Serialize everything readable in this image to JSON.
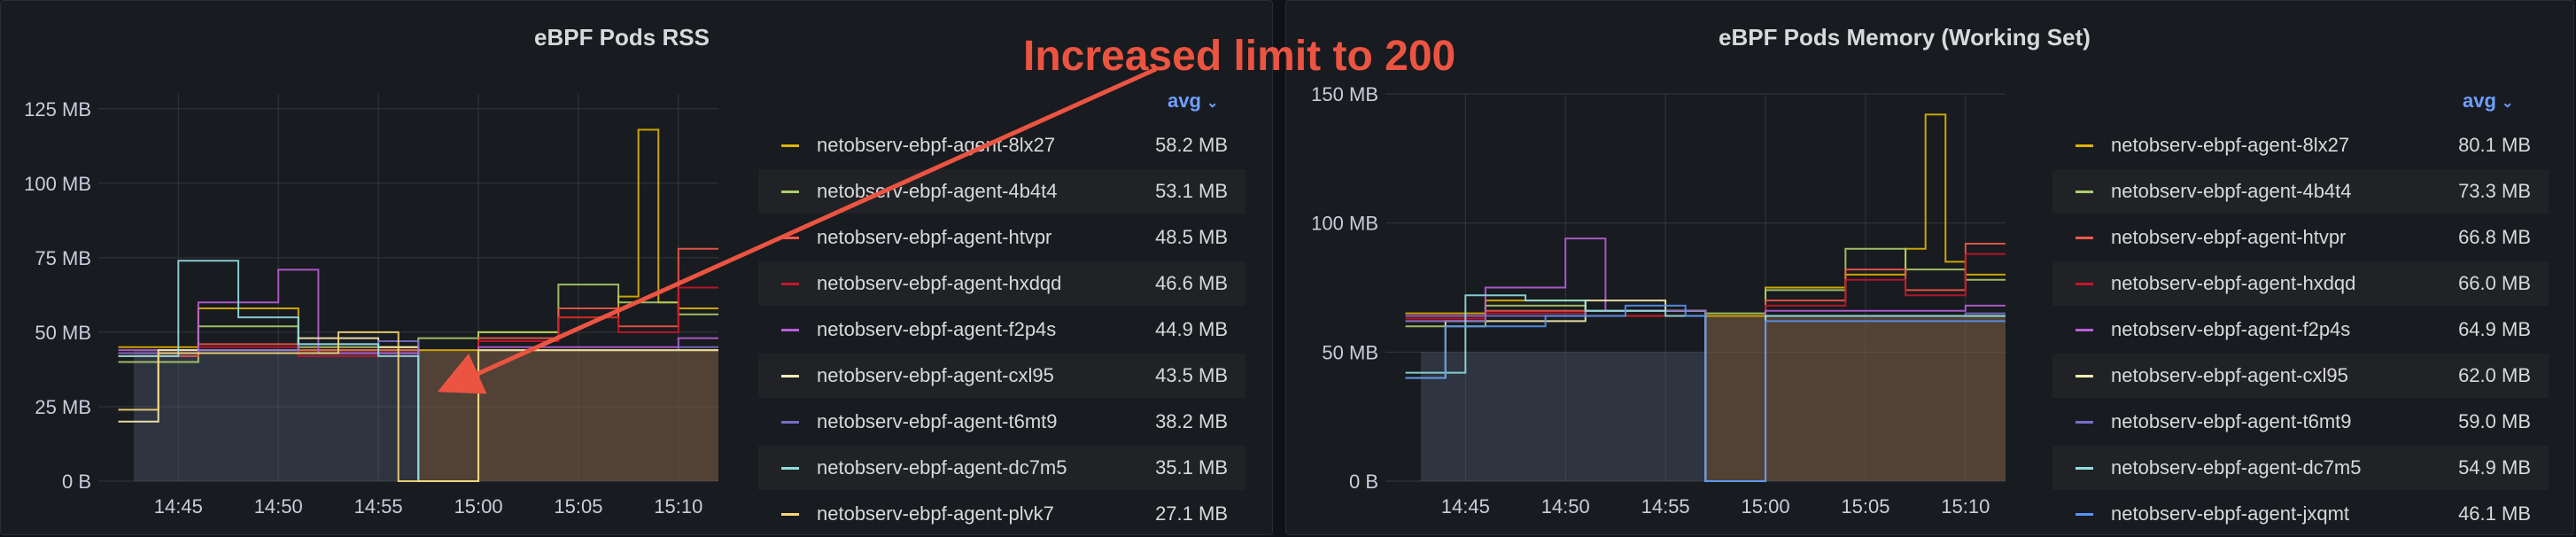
{
  "annotation": {
    "text": "Increased limit to 200",
    "color": "#ec5442"
  },
  "colors": {
    "background": "#111217",
    "panel": "#181b1f",
    "grid": "#34373d",
    "text": "#ccccdc",
    "legend_link": "#6e9fff",
    "before_area": "#5d6581",
    "after_area": "#7a5b44"
  },
  "panels": [
    {
      "title": "eBPF Pods RSS",
      "legend_aggregate": "avg",
      "legend": [
        {
          "name": "netobserv-ebpf-agent-8lx27",
          "value": "58.2 MB",
          "color": "#e0b400"
        },
        {
          "name": "netobserv-ebpf-agent-4b4t4",
          "value": "53.1 MB",
          "color": "#aecd6b"
        },
        {
          "name": "netobserv-ebpf-agent-htvpr",
          "value": "48.5 MB",
          "color": "#f2594a"
        },
        {
          "name": "netobserv-ebpf-agent-hxdqd",
          "value": "46.6 MB",
          "color": "#c4162a"
        },
        {
          "name": "netobserv-ebpf-agent-f2p4s",
          "value": "44.9 MB",
          "color": "#b85fd7"
        },
        {
          "name": "netobserv-ebpf-agent-cxl95",
          "value": "43.5 MB",
          "color": "#fcefb4"
        },
        {
          "name": "netobserv-ebpf-agent-t6mt9",
          "value": "38.2 MB",
          "color": "#7b6dc8"
        },
        {
          "name": "netobserv-ebpf-agent-dc7m5",
          "value": "35.1 MB",
          "color": "#8fe0e0"
        },
        {
          "name": "netobserv-ebpf-agent-plvk7",
          "value": "27.1 MB",
          "color": "#f7d77a"
        }
      ],
      "y_ticks": [
        "0 B",
        "25 MB",
        "50 MB",
        "75 MB",
        "100 MB",
        "125 MB"
      ],
      "x_ticks": [
        "14:45",
        "14:50",
        "14:55",
        "15:00",
        "15:05",
        "15:10"
      ],
      "chart_data": {
        "type": "line",
        "ylabel": "",
        "ylim": [
          0,
          130
        ],
        "unit": "MB",
        "grid": true,
        "legend_placement": "right",
        "series": [
          {
            "name": "netobserv-ebpf-agent-8lx27",
            "x": [
              "14:42",
              "14:46",
              "14:51",
              "14:57",
              "15:00",
              "15:04",
              "15:07",
              "15:08",
              "15:09",
              "15:10"
            ],
            "y": [
              45,
              58,
              44,
              44,
              50,
              55,
              62,
              118,
              60,
              58
            ]
          },
          {
            "name": "netobserv-ebpf-agent-4b4t4",
            "x": [
              "14:42",
              "14:46",
              "14:51",
              "14:57",
              "15:00",
              "15:04",
              "15:07",
              "15:10"
            ],
            "y": [
              40,
              52,
              45,
              48,
              50,
              66,
              60,
              56
            ]
          },
          {
            "name": "netobserv-ebpf-agent-htvpr",
            "x": [
              "14:42",
              "14:46",
              "14:51",
              "14:57",
              "15:00",
              "15:04",
              "15:07",
              "15:10"
            ],
            "y": [
              42,
              46,
              44,
              0,
              48,
              58,
              52,
              78
            ]
          },
          {
            "name": "netobserv-ebpf-agent-hxdqd",
            "x": [
              "14:42",
              "14:46",
              "14:51",
              "14:57",
              "15:00",
              "15:04",
              "15:07",
              "15:10"
            ],
            "y": [
              43,
              45,
              42,
              0,
              47,
              55,
              50,
              65
            ]
          },
          {
            "name": "netobserv-ebpf-agent-f2p4s",
            "x": [
              "14:42",
              "14:46",
              "14:50",
              "14:52",
              "14:57",
              "15:00",
              "15:10"
            ],
            "y": [
              44,
              60,
              71,
              43,
              0,
              45,
              48
            ]
          },
          {
            "name": "netobserv-ebpf-agent-cxl95",
            "x": [
              "14:42",
              "14:44",
              "14:48",
              "14:51",
              "14:55",
              "14:57",
              "15:00",
              "15:10"
            ],
            "y": [
              20,
              44,
              44,
              48,
              45,
              0,
              44,
              44
            ]
          },
          {
            "name": "netobserv-ebpf-agent-t6mt9",
            "x": [
              "14:42",
              "14:46",
              "14:51",
              "14:55",
              "14:57",
              "15:00",
              "15:10"
            ],
            "y": [
              43,
              44,
              46,
              47,
              0,
              44,
              45
            ]
          },
          {
            "name": "netobserv-ebpf-agent-dc7m5",
            "x": [
              "14:42",
              "14:45",
              "14:48",
              "14:51",
              "14:55",
              "14:57",
              "15:00",
              "15:10"
            ],
            "y": [
              42,
              74,
              55,
              46,
              42,
              0,
              44,
              44
            ]
          },
          {
            "name": "netobserv-ebpf-agent-plvk7",
            "x": [
              "14:42",
              "14:44",
              "14:49",
              "14:53",
              "14:56",
              "14:57",
              "15:00",
              "15:10"
            ],
            "y": [
              24,
              43,
              43,
              50,
              0,
              0,
              44,
              44
            ]
          }
        ]
      }
    },
    {
      "title": "eBPF Pods Memory (Working Set)",
      "legend_aggregate": "avg",
      "legend": [
        {
          "name": "netobserv-ebpf-agent-8lx27",
          "value": "80.1 MB",
          "color": "#e0b400"
        },
        {
          "name": "netobserv-ebpf-agent-4b4t4",
          "value": "73.3 MB",
          "color": "#aecd6b"
        },
        {
          "name": "netobserv-ebpf-agent-htvpr",
          "value": "66.8 MB",
          "color": "#f2594a"
        },
        {
          "name": "netobserv-ebpf-agent-hxdqd",
          "value": "66.0 MB",
          "color": "#c4162a"
        },
        {
          "name": "netobserv-ebpf-agent-f2p4s",
          "value": "64.9 MB",
          "color": "#b85fd7"
        },
        {
          "name": "netobserv-ebpf-agent-cxl95",
          "value": "62.0 MB",
          "color": "#fcefb4"
        },
        {
          "name": "netobserv-ebpf-agent-t6mt9",
          "value": "59.0 MB",
          "color": "#7b6dc8"
        },
        {
          "name": "netobserv-ebpf-agent-dc7m5",
          "value": "54.9 MB",
          "color": "#8fe0e0"
        },
        {
          "name": "netobserv-ebpf-agent-jxqmt",
          "value": "46.1 MB",
          "color": "#5794f2"
        }
      ],
      "y_ticks": [
        "0 B",
        "50 MB",
        "100 MB",
        "150 MB"
      ],
      "x_ticks": [
        "14:45",
        "14:50",
        "14:55",
        "15:00",
        "15:05",
        "15:10"
      ],
      "chart_data": {
        "type": "line",
        "ylabel": "",
        "ylim": [
          0,
          150
        ],
        "unit": "MB",
        "grid": true,
        "legend_placement": "right",
        "series": [
          {
            "name": "netobserv-ebpf-agent-8lx27",
            "x": [
              "14:42",
              "14:46",
              "14:51",
              "14:57",
              "15:00",
              "15:04",
              "15:07",
              "15:08",
              "15:09",
              "15:10"
            ],
            "y": [
              65,
              70,
              66,
              64,
              75,
              80,
              90,
              142,
              85,
              80
            ]
          },
          {
            "name": "netobserv-ebpf-agent-4b4t4",
            "x": [
              "14:42",
              "14:46",
              "14:51",
              "14:57",
              "15:00",
              "15:04",
              "15:07",
              "15:10"
            ],
            "y": [
              60,
              68,
              66,
              65,
              74,
              90,
              82,
              78
            ]
          },
          {
            "name": "netobserv-ebpf-agent-htvpr",
            "x": [
              "14:42",
              "14:46",
              "14:51",
              "14:57",
              "15:00",
              "15:04",
              "15:07",
              "15:10"
            ],
            "y": [
              62,
              66,
              64,
              0,
              70,
              82,
              74,
              92
            ]
          },
          {
            "name": "netobserv-ebpf-agent-hxdqd",
            "x": [
              "14:42",
              "14:46",
              "14:51",
              "14:57",
              "15:00",
              "15:04",
              "15:07",
              "15:10"
            ],
            "y": [
              63,
              65,
              64,
              0,
              68,
              78,
              72,
              88
            ]
          },
          {
            "name": "netobserv-ebpf-agent-f2p4s",
            "x": [
              "14:42",
              "14:46",
              "14:50",
              "14:52",
              "14:57",
              "15:00",
              "15:10"
            ],
            "y": [
              64,
              75,
              94,
              66,
              0,
              66,
              68
            ]
          },
          {
            "name": "netobserv-ebpf-agent-cxl95",
            "x": [
              "14:42",
              "14:44",
              "14:48",
              "14:51",
              "14:55",
              "14:57",
              "15:00",
              "15:10"
            ],
            "y": [
              40,
              62,
              62,
              70,
              66,
              0,
              64,
              64
            ]
          },
          {
            "name": "netobserv-ebpf-agent-t6mt9",
            "x": [
              "14:42",
              "14:46",
              "14:51",
              "14:55",
              "14:57",
              "15:00",
              "15:10"
            ],
            "y": [
              62,
              64,
              66,
              66,
              0,
              64,
              65
            ]
          },
          {
            "name": "netobserv-ebpf-agent-dc7m5",
            "x": [
              "14:42",
              "14:45",
              "14:48",
              "14:51",
              "14:55",
              "14:57",
              "15:00",
              "15:10"
            ],
            "y": [
              42,
              72,
              70,
              66,
              64,
              0,
              64,
              64
            ]
          },
          {
            "name": "netobserv-ebpf-agent-jxqmt",
            "x": [
              "14:42",
              "14:44",
              "14:49",
              "14:53",
              "14:56",
              "14:57",
              "15:00",
              "15:10"
            ],
            "y": [
              40,
              60,
              64,
              68,
              64,
              0,
              62,
              62
            ]
          }
        ]
      }
    }
  ]
}
